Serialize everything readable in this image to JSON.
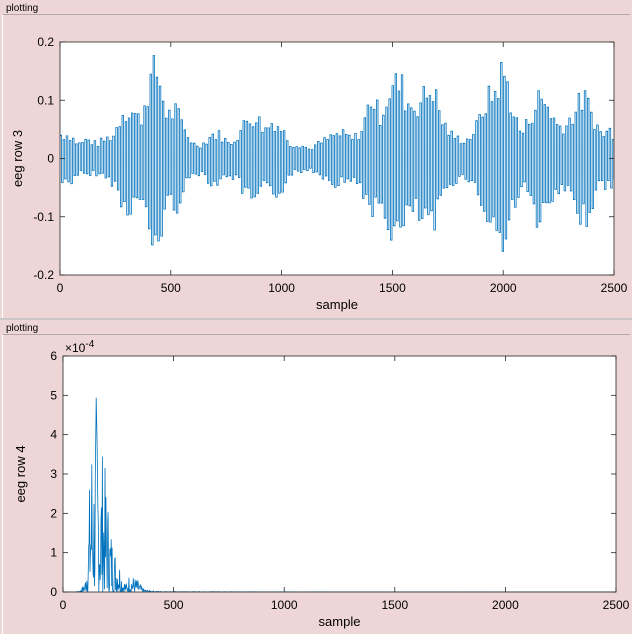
{
  "panels": [
    {
      "title": "plotting"
    },
    {
      "title": "plotting"
    }
  ],
  "colors": {
    "background": "#efd6d6",
    "axes_face": "#ffffff",
    "line": "#0072bd",
    "axis": "#262626"
  },
  "chart_data": [
    {
      "type": "line",
      "title": "",
      "xlabel": "sample",
      "ylabel": "eeg row 3",
      "xlim": [
        0,
        2500
      ],
      "ylim": [
        -0.2,
        0.2
      ],
      "xticks": [
        0,
        500,
        1000,
        1500,
        2000,
        2500
      ],
      "xtick_labels": [
        "0",
        "500",
        "1000",
        "1500",
        "2000",
        "2500"
      ],
      "yticks": [
        -0.2,
        -0.1,
        0,
        0.1,
        0.2
      ],
      "ytick_labels": [
        "-0.2",
        "-0.1",
        "0",
        "0.1",
        "0.2"
      ],
      "exponent_label": "",
      "grid": false,
      "series": [
        {
          "envelope": {
            "x": [
              0,
              40,
              80,
              120,
              160,
              200,
              240,
              280,
              320,
              360,
              400,
              420,
              440,
              460,
              480,
              520,
              560,
              600,
              640,
              680,
              720,
              760,
              800,
              840,
              880,
              920,
              960,
              1000,
              1040,
              1080,
              1120,
              1160,
              1200,
              1240,
              1280,
              1320,
              1360,
              1400,
              1440,
              1480,
              1520,
              1540,
              1560,
              1600,
              1640,
              1680,
              1720,
              1760,
              1800,
              1840,
              1880,
              1920,
              1960,
              1990,
              2010,
              2040,
              2080,
              2120,
              2160,
              2200,
              2240,
              2280,
              2320,
              2360,
              2400,
              2440,
              2480,
              2500
            ],
            "amplitude": [
              0.05,
              0.05,
              0.03,
              0.04,
              0.03,
              0.04,
              0.05,
              0.1,
              0.1,
              0.08,
              0.16,
              0.18,
              0.18,
              0.13,
              0.09,
              0.1,
              0.06,
              0.03,
              0.03,
              0.05,
              0.05,
              0.03,
              0.05,
              0.08,
              0.09,
              0.06,
              0.08,
              0.06,
              0.03,
              0.03,
              0.02,
              0.03,
              0.04,
              0.05,
              0.05,
              0.04,
              0.06,
              0.13,
              0.09,
              0.14,
              0.16,
              0.15,
              0.12,
              0.11,
              0.13,
              0.15,
              0.08,
              0.05,
              0.04,
              0.04,
              0.07,
              0.12,
              0.14,
              0.18,
              0.17,
              0.1,
              0.05,
              0.09,
              0.13,
              0.11,
              0.07,
              0.07,
              0.1,
              0.13,
              0.09,
              0.05,
              0.06,
              0.05
            ]
          }
        }
      ]
    },
    {
      "type": "line",
      "title": "",
      "xlabel": "sample",
      "ylabel": "eeg row 4",
      "xlim": [
        0,
        2500
      ],
      "ylim": [
        0,
        0.0006
      ],
      "xticks": [
        0,
        500,
        1000,
        1500,
        2000,
        2500
      ],
      "xtick_labels": [
        "0",
        "500",
        "1000",
        "1500",
        "2000",
        "2500"
      ],
      "yticks": [
        0,
        0.0001,
        0.0002,
        0.0003,
        0.0004,
        0.0005,
        0.0006
      ],
      "ytick_labels": [
        "0",
        "1",
        "2",
        "3",
        "4",
        "5",
        "6"
      ],
      "exponent_label": "×10",
      "exponent_power": "-4",
      "grid": false,
      "series": [
        {
          "envelope": {
            "x": [
              0,
              60,
              80,
              100,
              110,
              120,
              130,
              140,
              150,
              160,
              170,
              180,
              190,
              200,
              210,
              230,
              250,
              270,
              290,
              300,
              320,
              340,
              360,
              380,
              420,
              500,
              700,
              900,
              2500
            ],
            "amplitude": [
              0,
              0,
              5e-06,
              3e-05,
              0.00012,
              0.00028,
              0.00043,
              0.00036,
              0.00052,
              0.00042,
              0.00033,
              0.00038,
              0.00032,
              0.00027,
              0.0002,
              0.00012,
              0.0001,
              4e-05,
              2e-05,
              5e-05,
              4e-05,
              3e-05,
              1e-05,
              5e-06,
              2e-06,
              1e-06,
              1e-06,
              5e-07,
              0
            ]
          }
        }
      ]
    }
  ]
}
